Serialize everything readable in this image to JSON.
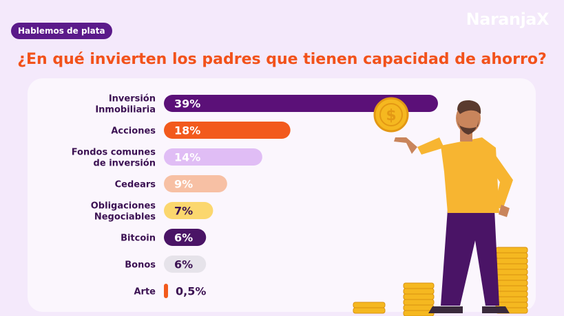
{
  "header": {
    "tag_label": "Hablemos de plata",
    "brand": "NaranjaX",
    "title": "¿En qué invierten los padres que tienen capacidad de ahorro?"
  },
  "illustration": {
    "figure": "person-holding-coin",
    "coin_icon": "dollar-coin-icon"
  },
  "chart_data": {
    "type": "bar",
    "orientation": "horizontal",
    "categories": [
      [
        "Inversión",
        "Inmobiliaria"
      ],
      [
        "Acciones"
      ],
      [
        "Fondos comunes",
        "de inversión"
      ],
      [
        "Cedears"
      ],
      [
        "Obligaciones",
        "Negociables"
      ],
      [
        "Bitcoin"
      ],
      [
        "Bonos"
      ],
      [
        "Arte"
      ]
    ],
    "values": [
      39,
      18,
      14,
      9,
      7,
      6,
      6,
      0.5
    ],
    "labels": [
      "39%",
      "18%",
      "14%",
      "9%",
      "7%",
      "6%",
      "6%",
      "0,5%"
    ],
    "colors": [
      "#5b1078",
      "#f25a1c",
      "#e0bdf5",
      "#f7c0a4",
      "#fbd76e",
      "#4a1466",
      "#e6e3ea",
      "#f25a1c"
    ],
    "label_colors": [
      "#ffffff",
      "#ffffff",
      "#ffffff",
      "#ffffff",
      "#3c1253",
      "#ffffff",
      "#3c1253",
      "#3c1253"
    ],
    "xlim": [
      0,
      39
    ],
    "grid": false,
    "legend": "none",
    "category_color": "#3c1253"
  }
}
